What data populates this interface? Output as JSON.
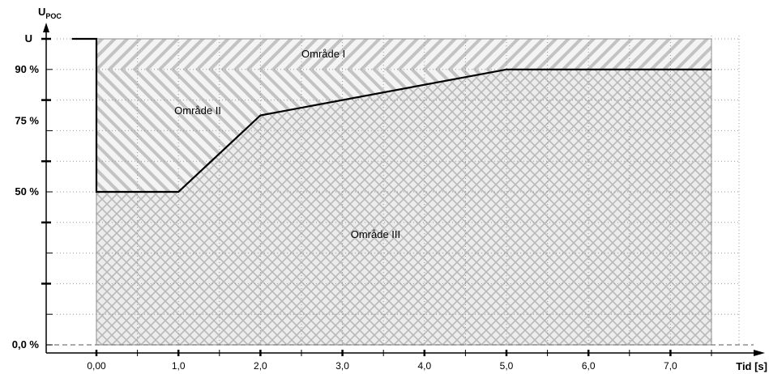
{
  "chart_data": {
    "type": "line",
    "ylabel_main": "U",
    "ylabel_sub": "POC",
    "xlabel": "Tid [s]",
    "xlim": [
      -0.6,
      8.2
    ],
    "ylim": [
      0,
      100
    ],
    "x_ticks": [
      {
        "v": 0,
        "label": "0,00"
      },
      {
        "v": 1,
        "label": "1,0"
      },
      {
        "v": 2,
        "label": "2,0"
      },
      {
        "v": 3,
        "label": "3,0"
      },
      {
        "v": 4,
        "label": "4,0"
      },
      {
        "v": 5,
        "label": "5,0"
      },
      {
        "v": 6,
        "label": "6,0"
      },
      {
        "v": 7,
        "label": "7,0"
      }
    ],
    "x_minor_ticks": [
      0.5,
      1.5,
      2.5,
      3.5,
      4.5,
      5.5,
      6.5,
      7.5
    ],
    "y_ticks": [
      {
        "v": 100,
        "label": "U"
      },
      {
        "v": 90,
        "label": "90 %"
      },
      {
        "v": 75,
        "label": "75 %"
      },
      {
        "v": 50,
        "label": "50 %"
      },
      {
        "v": 0,
        "label": "0,0 %"
      }
    ],
    "y_major_marks": [
      100,
      80,
      60,
      40,
      20
    ],
    "y_minor_marks": [
      90,
      70,
      50,
      30,
      10
    ],
    "grid_x": [
      0.5,
      1,
      1.5,
      2,
      2.5,
      3,
      3.5,
      4,
      4.5,
      5,
      5.5,
      6,
      6.5,
      7,
      7.5
    ],
    "grid_y": [
      100,
      90,
      80,
      70,
      60,
      50,
      40,
      30,
      20,
      10
    ],
    "region_xmax": 7.5,
    "regions": [
      {
        "name": "Område I",
        "label_at": [
          2.5,
          95
        ]
      },
      {
        "name": "Område II",
        "label_at": [
          0.95,
          76.5
        ]
      },
      {
        "name": "Område III",
        "label_at": [
          3.1,
          36
        ]
      }
    ],
    "series": [
      {
        "x": [
          -0.3,
          0,
          0,
          1,
          2,
          5,
          7.5
        ],
        "y": [
          100,
          100,
          50,
          50,
          75,
          90,
          90
        ]
      }
    ],
    "colors": {
      "line": "#000000",
      "hatch": "#b9b9b9",
      "region_bg": "#e9e9e9",
      "grid": "#999999",
      "dashed": "#777777"
    }
  }
}
